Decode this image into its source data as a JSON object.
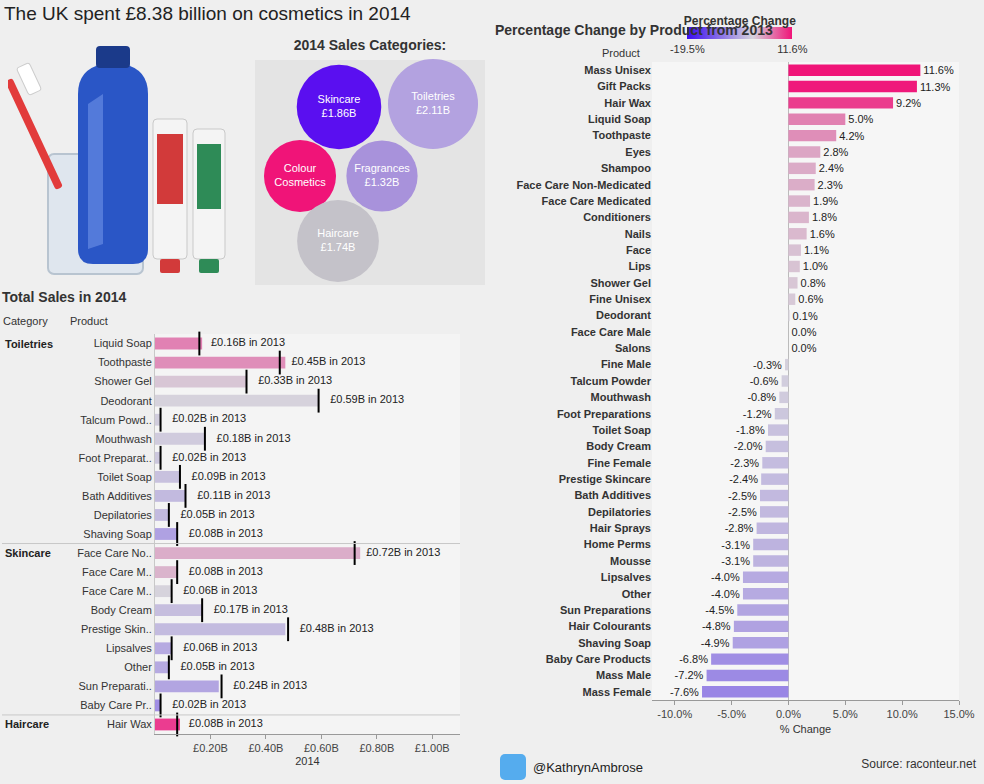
{
  "title": "The UK spent £8.38 billion on cosmetics in 2014",
  "footer": {
    "twitter": "@KathrynAmbrose",
    "source": "Source: raconteur.net"
  },
  "chart_data": [
    {
      "type": "bubble",
      "title": "2014 Sales Categories:",
      "categories": [
        "Skincare",
        "Toiletries",
        "Colour Cosmetics",
        "Fragrances",
        "Haircare"
      ],
      "values": [
        1.86,
        2.11,
        1.35,
        1.32,
        1.74
      ],
      "value_labels": [
        "£1.86B",
        "£2.11B",
        null,
        "£1.32B",
        "£1.74B"
      ],
      "colors": [
        "#5a0ff0",
        "#b3a2e0",
        "#f01478",
        "#a892db",
        "#c4c2c9"
      ],
      "data_labels": true,
      "tick_labels": false
    },
    {
      "type": "bar",
      "orientation": "horizontal",
      "title": "Total Sales in 2014",
      "column_headers": [
        "Category",
        "Product"
      ],
      "x_label": "2014",
      "xlim": [
        0,
        1.1
      ],
      "xticks": [
        {
          "value": 0.2,
          "label": "£0.20B"
        },
        {
          "value": 0.4,
          "label": "£0.40B"
        },
        {
          "value": 0.6,
          "label": "£0.60B"
        },
        {
          "value": 0.8,
          "label": "£0.80B"
        },
        {
          "value": 1.0,
          "label": "£1.00B"
        }
      ],
      "grid": false,
      "marker": "line",
      "groups": [
        {
          "name": "Toiletries",
          "categories": [
            "Liquid Soap",
            "Toothpaste",
            "Shower Gel",
            "Deodorant",
            "Talcum Powd..",
            "Mouthwash",
            "Foot Preparat..",
            "Toilet Soap",
            "Bath Additives",
            "Depilatories",
            "Shaving Soap"
          ],
          "values_2014": [
            0.17,
            0.47,
            0.33,
            0.59,
            0.02,
            0.18,
            0.02,
            0.09,
            0.11,
            0.05,
            0.08
          ],
          "values_2013": [
            0.16,
            0.45,
            0.33,
            0.59,
            0.02,
            0.18,
            0.02,
            0.09,
            0.11,
            0.05,
            0.08
          ],
          "labels_2013": [
            "£0.16B in 2013",
            "£0.45B in 2013",
            "£0.33B in 2013",
            "£0.59B in 2013",
            "£0.02B in 2013",
            "£0.18B in 2013",
            "£0.02B in 2013",
            "£0.09B in 2013",
            "£0.11B in 2013",
            "£0.05B in 2013",
            "£0.08B in 2013"
          ],
          "colors": [
            "#e181b3",
            "#df8eb9",
            "#d8c6d5",
            "#d6d2dc",
            "#d1cddd",
            "#d0cbdd",
            "#ccc7dd",
            "#c8c1de",
            "#c2badf",
            "#c2badf",
            "#afa1e2"
          ]
        },
        {
          "name": "Skincare",
          "categories": [
            "Face Care No..",
            "Face Care M..",
            "Face Care M..",
            "Body Cream",
            "Prestige Skin..",
            "Lipsalves",
            "Other",
            "Sun Preparati..",
            "Baby Care Pr.."
          ],
          "values_2014": [
            0.74,
            0.08,
            0.06,
            0.17,
            0.47,
            0.06,
            0.05,
            0.23,
            0.02
          ],
          "values_2013": [
            0.72,
            0.08,
            0.06,
            0.17,
            0.48,
            0.06,
            0.05,
            0.24,
            0.02
          ],
          "labels_2013": [
            "£0.72B in 2013",
            "£0.08B in 2013",
            "£0.06B in 2013",
            "£0.17B in 2013",
            "£0.48B in 2013",
            "£0.06B in 2013",
            "£0.05B in 2013",
            "£0.24B in 2013",
            "£0.02B in 2013"
          ],
          "colors": [
            "#dbadc9",
            "#dab4cc",
            "#d6d3dc",
            "#c6bede",
            "#c3bbdf",
            "#b6aae1",
            "#b6aae1",
            "#b2a5e1",
            "#a08ee4"
          ]
        },
        {
          "name": "Haircare",
          "categories": [
            "Hair Wax"
          ],
          "values_2014": [
            0.09
          ],
          "values_2013": [
            0.08
          ],
          "labels_2013": [
            "£0.08B in 2013"
          ],
          "colors": [
            "#eb3c90"
          ]
        }
      ]
    },
    {
      "type": "bar",
      "orientation": "horizontal",
      "title": "Percentage Change by Product from 2013",
      "column_header": "Product",
      "x_label": "% Change",
      "xlim": [
        -12,
        15
      ],
      "xticks": [
        {
          "value": -10,
          "label": "-10.0%"
        },
        {
          "value": -5,
          "label": "-5.0%"
        },
        {
          "value": 0,
          "label": "0.0%"
        },
        {
          "value": 5,
          "label": "5.0%"
        },
        {
          "value": 10,
          "label": "10.0%"
        },
        {
          "value": 15,
          "label": "15.0%"
        }
      ],
      "grid": false,
      "data_labels": true,
      "categories": [
        "Mass Unisex",
        "Gift Packs",
        "Hair Wax",
        "Liquid Soap",
        "Toothpaste",
        "Eyes",
        "Shampoo",
        "Face Care Non-Medicated",
        "Face Care Medicated",
        "Conditioners",
        "Nails",
        "Face",
        "Lips",
        "Shower Gel",
        "Fine Unisex",
        "Deodorant",
        "Face Care Male",
        "Salons",
        "Fine Male",
        "Talcum Powder",
        "Mouthwash",
        "Foot Preparations",
        "Toilet Soap",
        "Body Cream",
        "Fine Female",
        "Prestige Skincare",
        "Bath Additives",
        "Depilatories",
        "Hair Sprays",
        "Home Perms",
        "Mousse",
        "Lipsalves",
        "Other",
        "Sun Preparations",
        "Hair Colourants",
        "Shaving Soap",
        "Baby Care Products",
        "Mass Male",
        "Mass Female"
      ],
      "values": [
        11.6,
        11.3,
        9.2,
        5.0,
        4.2,
        2.8,
        2.4,
        2.3,
        1.9,
        1.8,
        1.6,
        1.1,
        1.0,
        0.8,
        0.6,
        0.1,
        0.0,
        0.0,
        -0.3,
        -0.6,
        -0.8,
        -1.2,
        -1.8,
        -2.0,
        -2.3,
        -2.4,
        -2.5,
        -2.5,
        -2.8,
        -3.1,
        -3.1,
        -4.0,
        -4.0,
        -4.5,
        -4.8,
        -4.9,
        -6.8,
        -7.2,
        -7.6
      ],
      "value_labels": [
        "11.6%",
        "11.3%",
        "9.2%",
        "5.0%",
        "4.2%",
        "2.8%",
        "2.4%",
        "2.3%",
        "1.9%",
        "1.8%",
        "1.6%",
        "1.1%",
        "1.0%",
        "0.8%",
        "0.6%",
        "0.1%",
        "0.0%",
        "0.0%",
        "-0.3%",
        "-0.6%",
        "-0.8%",
        "-1.2%",
        "-1.8%",
        "-2.0%",
        "-2.3%",
        "-2.4%",
        "-2.5%",
        "-2.5%",
        "-2.8%",
        "-3.1%",
        "-3.1%",
        "-4.0%",
        "-4.0%",
        "-4.5%",
        "-4.8%",
        "-4.9%",
        "-6.8%",
        "-7.2%",
        "-7.6%"
      ],
      "color_title": "Percentage Change",
      "color_range": [
        -19.5,
        11.6
      ],
      "color_ticks": [
        {
          "value": -19.5,
          "label": "-19.5%"
        },
        {
          "value": 11.6,
          "label": "11.6%"
        }
      ]
    }
  ]
}
